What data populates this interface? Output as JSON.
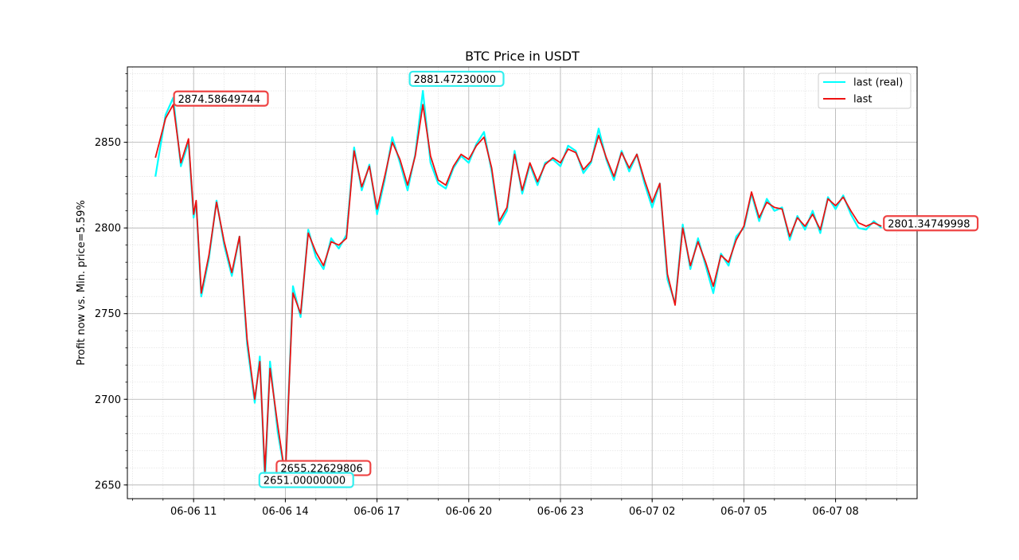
{
  "chart_data": {
    "type": "line",
    "title": "BTC Price in USDT",
    "xlabel": "",
    "ylabel": "Profit now vs. Min. price=5.59%",
    "x_start": "06-06 09:45",
    "x_end": "06-07 09:30",
    "xlim": [
      "06-06 08:50",
      "06-07 10:40"
    ],
    "ylim": [
      2642,
      2894
    ],
    "x_ticks": [
      "06-06 11",
      "06-06 14",
      "06-06 17",
      "06-06 20",
      "06-06 23",
      "06-07 02",
      "06-07 05",
      "06-07 08"
    ],
    "y_ticks": [
      2650,
      2700,
      2750,
      2800,
      2850
    ],
    "grid": true,
    "minor_grid": true,
    "legend_position": "top-right",
    "colors": {
      "real": "#00ffff",
      "last": "#ee1111",
      "real_box": "#33eeee",
      "last_box": "#ee4444"
    },
    "series": [
      {
        "name": "last (real)",
        "color": "#00ffff",
        "x": [
          "06-06 09:45",
          "06-06 10:05",
          "06-06 10:20",
          "06-06 10:35",
          "06-06 10:50",
          "06-06 11:00",
          "06-06 11:05",
          "06-06 11:15",
          "06-06 11:30",
          "06-06 11:45",
          "06-06 12:00",
          "06-06 12:15",
          "06-06 12:30",
          "06-06 12:45",
          "06-06 13:00",
          "06-06 13:10",
          "06-06 13:20",
          "06-06 13:30",
          "06-06 13:45",
          "06-06 14:00",
          "06-06 14:15",
          "06-06 14:30",
          "06-06 14:45",
          "06-06 15:00",
          "06-06 15:15",
          "06-06 15:30",
          "06-06 15:45",
          "06-06 16:00",
          "06-06 16:15",
          "06-06 16:30",
          "06-06 16:45",
          "06-06 17:00",
          "06-06 17:15",
          "06-06 17:30",
          "06-06 17:45",
          "06-06 18:00",
          "06-06 18:15",
          "06-06 18:30",
          "06-06 18:45",
          "06-06 19:00",
          "06-06 19:15",
          "06-06 19:30",
          "06-06 19:45",
          "06-06 20:00",
          "06-06 20:15",
          "06-06 20:30",
          "06-06 20:45",
          "06-06 21:00",
          "06-06 21:15",
          "06-06 21:30",
          "06-06 21:45",
          "06-06 22:00",
          "06-06 22:15",
          "06-06 22:30",
          "06-06 22:45",
          "06-06 23:00",
          "06-06 23:15",
          "06-06 23:30",
          "06-06 23:45",
          "06-07 00:00",
          "06-07 00:15",
          "06-07 00:30",
          "06-07 00:45",
          "06-07 01:00",
          "06-07 01:15",
          "06-07 01:30",
          "06-07 01:45",
          "06-07 02:00",
          "06-07 02:15",
          "06-07 02:30",
          "06-07 02:45",
          "06-07 03:00",
          "06-07 03:15",
          "06-07 03:30",
          "06-07 03:45",
          "06-07 04:00",
          "06-07 04:15",
          "06-07 04:30",
          "06-07 04:45",
          "06-07 05:00",
          "06-07 05:15",
          "06-07 05:30",
          "06-07 05:45",
          "06-07 06:00",
          "06-07 06:15",
          "06-07 06:30",
          "06-07 06:45",
          "06-07 07:00",
          "06-07 07:15",
          "06-07 07:30",
          "06-07 07:45",
          "06-07 08:00",
          "06-07 08:15",
          "06-07 08:30",
          "06-07 08:45",
          "06-07 09:00",
          "06-07 09:15",
          "06-07 09:30"
        ],
        "y": [
          2830,
          2866,
          2876,
          2836,
          2850,
          2806,
          2815,
          2760,
          2782,
          2816,
          2790,
          2772,
          2795,
          2732,
          2698,
          2725,
          2652,
          2722,
          2681,
          2655,
          2766,
          2748,
          2799,
          2783,
          2776,
          2794,
          2788,
          2796,
          2847,
          2822,
          2837,
          2808,
          2828,
          2853,
          2838,
          2822,
          2843,
          2880,
          2838,
          2826,
          2823,
          2835,
          2842,
          2838,
          2849,
          2856,
          2833,
          2802,
          2810,
          2845,
          2820,
          2837,
          2825,
          2838,
          2840,
          2836,
          2848,
          2845,
          2832,
          2838,
          2858,
          2840,
          2828,
          2845,
          2833,
          2843,
          2826,
          2812,
          2826,
          2770,
          2756,
          2802,
          2776,
          2794,
          2778,
          2762,
          2785,
          2778,
          2795,
          2800,
          2820,
          2804,
          2817,
          2810,
          2812,
          2793,
          2807,
          2799,
          2810,
          2797,
          2818,
          2811,
          2819,
          2808,
          2800,
          2799,
          2804,
          2800
        ]
      },
      {
        "name": "last",
        "color": "#ee1111",
        "x": [
          "06-06 09:45",
          "06-06 10:05",
          "06-06 10:20",
          "06-06 10:35",
          "06-06 10:50",
          "06-06 11:00",
          "06-06 11:05",
          "06-06 11:15",
          "06-06 11:30",
          "06-06 11:45",
          "06-06 12:00",
          "06-06 12:15",
          "06-06 12:30",
          "06-06 12:45",
          "06-06 13:00",
          "06-06 13:10",
          "06-06 13:20",
          "06-06 13:30",
          "06-06 13:45",
          "06-06 14:00",
          "06-06 14:15",
          "06-06 14:30",
          "06-06 14:45",
          "06-06 15:00",
          "06-06 15:15",
          "06-06 15:30",
          "06-06 15:45",
          "06-06 16:00",
          "06-06 16:15",
          "06-06 16:30",
          "06-06 16:45",
          "06-06 17:00",
          "06-06 17:15",
          "06-06 17:30",
          "06-06 17:45",
          "06-06 18:00",
          "06-06 18:15",
          "06-06 18:30",
          "06-06 18:45",
          "06-06 19:00",
          "06-06 19:15",
          "06-06 19:30",
          "06-06 19:45",
          "06-06 20:00",
          "06-06 20:15",
          "06-06 20:30",
          "06-06 20:45",
          "06-06 21:00",
          "06-06 21:15",
          "06-06 21:30",
          "06-06 21:45",
          "06-06 22:00",
          "06-06 22:15",
          "06-06 22:30",
          "06-06 22:45",
          "06-06 23:00",
          "06-06 23:15",
          "06-06 23:30",
          "06-06 23:45",
          "06-07 00:00",
          "06-07 00:15",
          "06-07 00:30",
          "06-07 00:45",
          "06-07 01:00",
          "06-07 01:15",
          "06-07 01:30",
          "06-07 01:45",
          "06-07 02:00",
          "06-07 02:15",
          "06-07 02:30",
          "06-07 02:45",
          "06-07 03:00",
          "06-07 03:15",
          "06-07 03:30",
          "06-07 03:45",
          "06-07 04:00",
          "06-07 04:15",
          "06-07 04:30",
          "06-07 04:45",
          "06-07 05:00",
          "06-07 05:15",
          "06-07 05:30",
          "06-07 05:45",
          "06-07 06:00",
          "06-07 06:15",
          "06-07 06:30",
          "06-07 06:45",
          "06-07 07:00",
          "06-07 07:15",
          "06-07 07:30",
          "06-07 07:45",
          "06-07 08:00",
          "06-07 08:15",
          "06-07 08:30",
          "06-07 08:45",
          "06-07 09:00",
          "06-07 09:15",
          "06-07 09:30"
        ],
        "y": [
          2841,
          2864,
          2872,
          2838,
          2852,
          2808,
          2816,
          2762,
          2784,
          2815,
          2792,
          2774,
          2795,
          2735,
          2700,
          2722,
          2658,
          2718,
          2685,
          2655,
          2762,
          2750,
          2797,
          2786,
          2778,
          2792,
          2790,
          2794,
          2845,
          2824,
          2836,
          2811,
          2830,
          2850,
          2840,
          2825,
          2842,
          2872,
          2842,
          2828,
          2825,
          2836,
          2843,
          2840,
          2848,
          2853,
          2835,
          2804,
          2812,
          2843,
          2822,
          2838,
          2827,
          2837,
          2841,
          2838,
          2846,
          2844,
          2834,
          2839,
          2854,
          2841,
          2830,
          2844,
          2835,
          2843,
          2828,
          2815,
          2826,
          2773,
          2755,
          2800,
          2778,
          2792,
          2780,
          2766,
          2784,
          2780,
          2793,
          2801,
          2821,
          2806,
          2815,
          2812,
          2811,
          2795,
          2806,
          2801,
          2808,
          2799,
          2817,
          2813,
          2818,
          2810,
          2803,
          2801,
          2803,
          2801
        ]
      }
    ],
    "annotations": [
      {
        "text": "2874.58649744",
        "series": "last",
        "x": "06-06 10:20",
        "y": 2874.58649744
      },
      {
        "text": "2881.47230000",
        "series": "last (real)",
        "x": "06-06 18:15",
        "y": 2881.4723
      },
      {
        "text": "2655.22629806",
        "series": "last",
        "x": "06-06 14:00",
        "y": 2655.22629806
      },
      {
        "text": "2651.00000000",
        "series": "last (real)",
        "x": "06-06 13:20",
        "y": 2651.0
      },
      {
        "text": "2801.34749998",
        "series": "last",
        "x": "06-07 09:30",
        "y": 2801.34749998
      }
    ]
  }
}
